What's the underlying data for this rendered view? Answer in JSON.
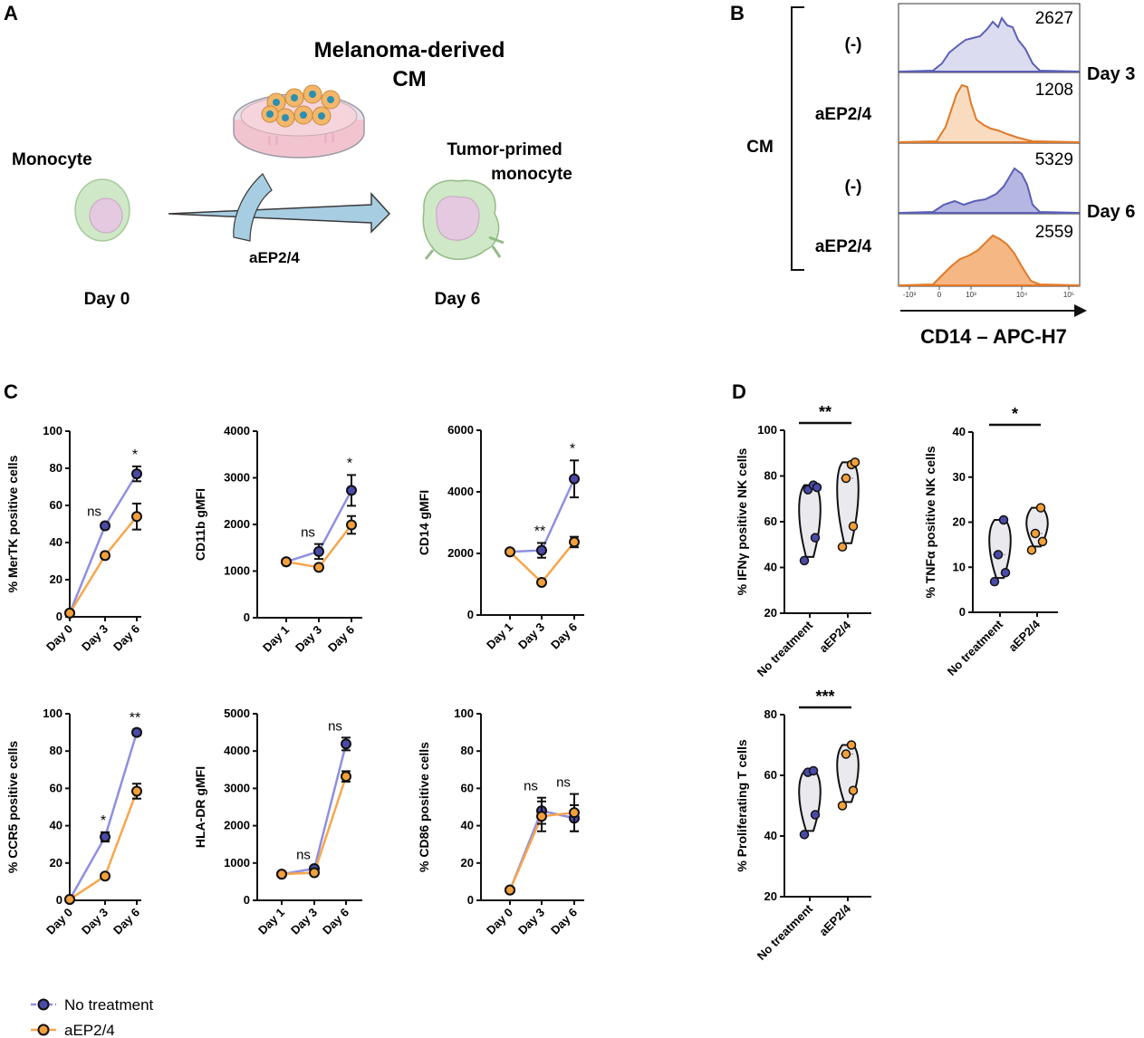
{
  "panel_a": {
    "letter": "A",
    "title_line1": "Melanoma-derived",
    "title_line2": "CM",
    "monocyte_label": "Monocyte",
    "tumor_primed_line1": "Tumor-primed",
    "tumor_primed_line2": "monocyte",
    "treatment_label": "aEP2/4",
    "day0_label": "Day 0",
    "day6_label": "Day 6",
    "colors": {
      "cell_outer": "#c8e6c0",
      "cell_inner": "#e0c4dc",
      "dish": "#f2c4cf",
      "arrow": "#9fc8e0"
    }
  },
  "panel_b": {
    "letter": "B",
    "group_label": "CM",
    "row_labels": [
      "(-)",
      "aEP2/4",
      "(-)",
      "aEP2/4"
    ],
    "values": [
      "2627",
      "1208",
      "5329",
      "2559"
    ],
    "day_labels": [
      "Day 3",
      "Day 6"
    ],
    "axis_ticks": [
      "-10³",
      "0",
      "10³",
      "10⁴",
      "10⁵"
    ],
    "xlabel": "CD14 – APC-H7",
    "colors": {
      "no_treatment_fill": "#d9d9ee",
      "no_treatment_stroke": "#5b5fb5",
      "treated_fill": "#f9d6b8",
      "treated_stroke": "#e07a28"
    }
  },
  "panel_c_letter": "C",
  "panel_d_letter": "D",
  "legend": {
    "items": [
      {
        "label": "No treatment",
        "line_color": "#8f8fe0",
        "marker_color": "#4a4aa8"
      },
      {
        "label": "aEP2/4",
        "line_color": "#f7a64c",
        "marker_color": "#f2a03a"
      }
    ]
  },
  "chart_data": [
    {
      "type": "line",
      "id": "c1",
      "ylabel": "% MerTK positive cells",
      "categories": [
        "Day 0",
        "Day 3",
        "Day 6"
      ],
      "ylim": [
        0,
        100
      ],
      "yticks": [
        "0",
        "20",
        "40",
        "60",
        "80",
        "100"
      ],
      "series": [
        {
          "name": "No treatment",
          "values": [
            2,
            49,
            77
          ],
          "errors": [
            0.5,
            1.5,
            4
          ]
        },
        {
          "name": "aEP2/4",
          "values": [
            2,
            33,
            54
          ],
          "errors": [
            0.5,
            1.5,
            7
          ]
        }
      ],
      "annotations": [
        {
          "at": "Day 3",
          "text": "ns"
        },
        {
          "at": "Day 6",
          "text": "*"
        }
      ]
    },
    {
      "type": "line",
      "id": "c2",
      "ylabel": "CD11b gMFI",
      "categories": [
        "Day 1",
        "Day 3",
        "Day 6"
      ],
      "ylim": [
        0,
        4000
      ],
      "yticks": [
        "0",
        "1000",
        "2000",
        "3000",
        "4000"
      ],
      "series": [
        {
          "name": "No treatment",
          "values": [
            1200,
            1420,
            2730
          ],
          "errors": [
            30,
            160,
            330
          ]
        },
        {
          "name": "aEP2/4",
          "values": [
            1200,
            1080,
            1990
          ],
          "errors": [
            30,
            50,
            190
          ]
        }
      ],
      "annotations": [
        {
          "at": "Day 3",
          "text": "ns"
        },
        {
          "at": "Day 6",
          "text": "*"
        }
      ]
    },
    {
      "type": "line",
      "id": "c3",
      "ylabel": "CD14 gMFI",
      "categories": [
        "Day 1",
        "Day 3",
        "Day 6"
      ],
      "ylim": [
        0,
        6000
      ],
      "yticks": [
        "0",
        "2000",
        "4000",
        "6000"
      ],
      "series": [
        {
          "name": "No treatment",
          "values": [
            2050,
            2100,
            4420
          ],
          "errors": [
            40,
            240,
            600
          ]
        },
        {
          "name": "aEP2/4",
          "values": [
            2050,
            1060,
            2370
          ],
          "errors": [
            40,
            40,
            170
          ]
        }
      ],
      "annotations": [
        {
          "at": "Day 3",
          "text": "**"
        },
        {
          "at": "Day 6",
          "text": "*"
        }
      ]
    },
    {
      "type": "line",
      "id": "c4",
      "ylabel": "% CCR5 positive cells",
      "categories": [
        "Day 0",
        "Day 3",
        "Day 6"
      ],
      "ylim": [
        0,
        100
      ],
      "yticks": [
        "0",
        "20",
        "40",
        "60",
        "80",
        "100"
      ],
      "series": [
        {
          "name": "No treatment",
          "values": [
            0.5,
            34,
            90
          ],
          "errors": [
            0.3,
            2.5,
            1.5
          ]
        },
        {
          "name": "aEP2/4",
          "values": [
            0.5,
            13,
            58.5
          ],
          "errors": [
            0.3,
            1,
            4
          ]
        }
      ],
      "annotations": [
        {
          "at": "Day 3",
          "text": "*"
        },
        {
          "at": "Day 6",
          "text": "**"
        }
      ]
    },
    {
      "type": "line",
      "id": "c5",
      "ylabel": "HLA-DR gMFI",
      "categories": [
        "Day 1",
        "Day 3",
        "Day 6"
      ],
      "ylim": [
        0,
        5000
      ],
      "yticks": [
        "0",
        "1000",
        "2000",
        "3000",
        "4000",
        "5000"
      ],
      "series": [
        {
          "name": "No treatment",
          "values": [
            700,
            850,
            4190
          ],
          "errors": [
            30,
            60,
            170
          ]
        },
        {
          "name": "aEP2/4",
          "values": [
            700,
            740,
            3320
          ],
          "errors": [
            30,
            40,
            140
          ]
        }
      ],
      "annotations": [
        {
          "at": "Day 3",
          "text": "ns"
        },
        {
          "at": "Day 6",
          "text": "ns"
        }
      ]
    },
    {
      "type": "line",
      "id": "c6",
      "ylabel": "% CD86 positive cells",
      "categories": [
        "Day 0",
        "Day 3",
        "Day 6"
      ],
      "ylim": [
        0,
        100
      ],
      "yticks": [
        "0",
        "20",
        "40",
        "60",
        "80",
        "100"
      ],
      "series": [
        {
          "name": "No treatment",
          "values": [
            5.5,
            48,
            44
          ],
          "errors": [
            0.5,
            7,
            7
          ]
        },
        {
          "name": "aEP2/4",
          "values": [
            5.5,
            45,
            47
          ],
          "errors": [
            0.5,
            8,
            10
          ]
        }
      ],
      "annotations": [
        {
          "at": "Day 3",
          "text": "ns"
        },
        {
          "at": "Day 6",
          "text": "ns"
        }
      ]
    },
    {
      "type": "violin",
      "id": "d1",
      "ylabel": "% IFNγ positive NK cells",
      "categories": [
        "No treatment",
        "aEP2/4"
      ],
      "ylim": [
        20,
        100
      ],
      "yticks": [
        "20",
        "40",
        "60",
        "80",
        "100"
      ],
      "groups": [
        {
          "name": "No treatment",
          "points": [
            43,
            53,
            74,
            76,
            75
          ]
        },
        {
          "name": "aEP2/4",
          "points": [
            49,
            58,
            79,
            85,
            86
          ]
        }
      ],
      "significance": "**"
    },
    {
      "type": "violin",
      "id": "d2",
      "ylabel": "% TNFα positive NK cells",
      "categories": [
        "No treatment",
        "aEP2/4"
      ],
      "ylim": [
        0,
        40
      ],
      "yticks": [
        "0",
        "10",
        "20",
        "30",
        "40"
      ],
      "groups": [
        {
          "name": "No treatment",
          "points": [
            6.8,
            8.8,
            12.8,
            20.5
          ]
        },
        {
          "name": "aEP2/4",
          "points": [
            13.8,
            15.7,
            17.5,
            23.2
          ]
        }
      ],
      "significance": "*"
    },
    {
      "type": "violin",
      "id": "d3",
      "ylabel": "% Proliferating  T cells",
      "categories": [
        "No treatment",
        "aEP2/4"
      ],
      "ylim": [
        20,
        80
      ],
      "yticks": [
        "20",
        "40",
        "60",
        "80"
      ],
      "groups": [
        {
          "name": "No treatment",
          "points": [
            40.5,
            47,
            61,
            61.5
          ]
        },
        {
          "name": "aEP2/4",
          "points": [
            50,
            55,
            67,
            70
          ]
        }
      ],
      "significance": "***"
    }
  ]
}
